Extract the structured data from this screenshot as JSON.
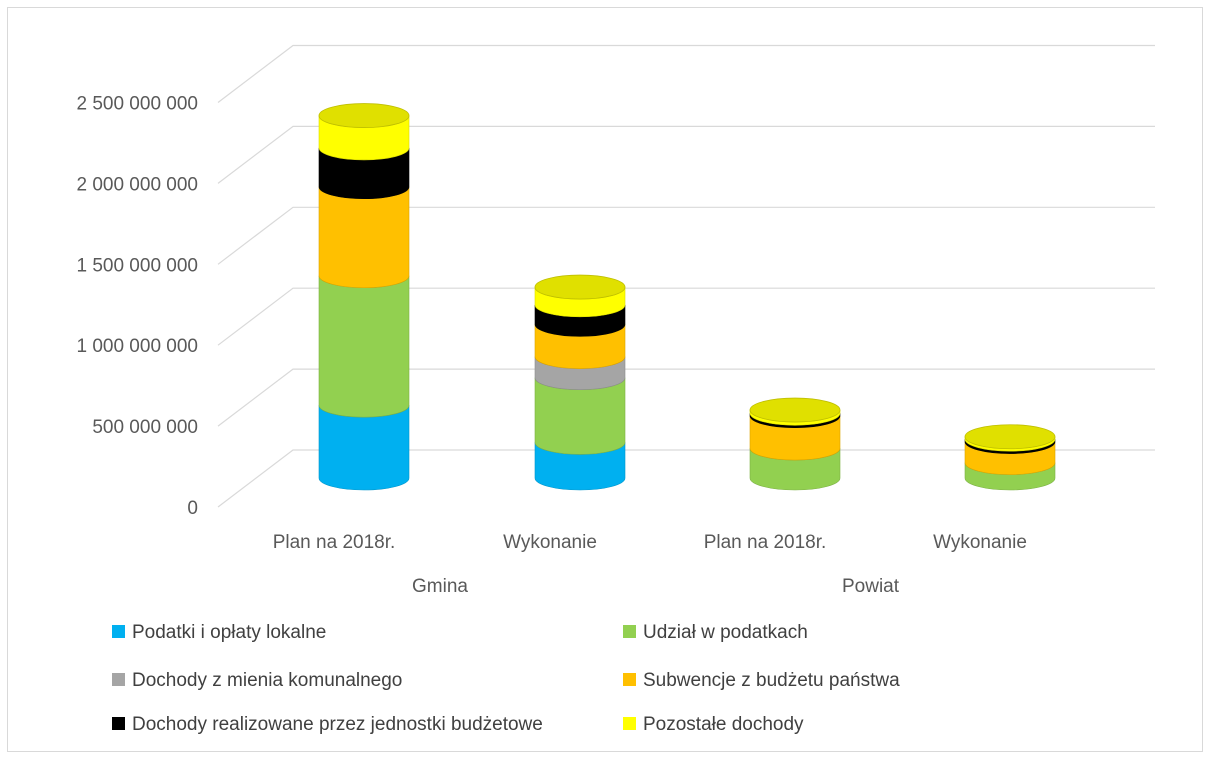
{
  "chart_data": {
    "type": "bar",
    "style": "3d-stacked-cylinder",
    "title": "",
    "xlabel": "",
    "ylabel": "",
    "ylim": [
      0,
      2500000000
    ],
    "yticks": [
      0,
      500000000,
      1000000000,
      1500000000,
      2000000000,
      2500000000
    ],
    "ytick_labels": [
      "0",
      "500 000 000",
      "1 000 000 000",
      "1 500 000 000",
      "2 000 000 000",
      "2 500 000 000"
    ],
    "grid": true,
    "legend_position": "bottom",
    "categories": [
      "Plan  na 2018r.",
      "Wykonanie",
      "Plan  na 2018r.",
      "Wykonanie"
    ],
    "groups": [
      {
        "label": "Gmina",
        "categories": [
          0,
          1
        ]
      },
      {
        "label": "Powiat",
        "categories": [
          2,
          3
        ]
      }
    ],
    "series": [
      {
        "name": "Podatki i opłaty lokalne",
        "color": "#00B0F0",
        "values": [
          450000000,
          220000000,
          0,
          0
        ]
      },
      {
        "name": "Udział w podatkach",
        "color": "#92D050",
        "values": [
          800000000,
          400000000,
          185000000,
          95000000
        ]
      },
      {
        "name": "Dochody z mienia komunalnego",
        "color": "#A5A5A5",
        "values": [
          0,
          130000000,
          0,
          0
        ]
      },
      {
        "name": "Subwencje z budżetu państwa",
        "color": "#FFC000",
        "values": [
          550000000,
          200000000,
          200000000,
          130000000
        ]
      },
      {
        "name": "Dochody realizowane przez jednostki  budżetowe",
        "color": "#000000",
        "values": [
          240000000,
          120000000,
          15000000,
          15000000
        ]
      },
      {
        "name": "Pozostałe dochody",
        "color": "#FFFF00",
        "values": [
          200000000,
          110000000,
          20000000,
          15000000
        ]
      }
    ]
  }
}
